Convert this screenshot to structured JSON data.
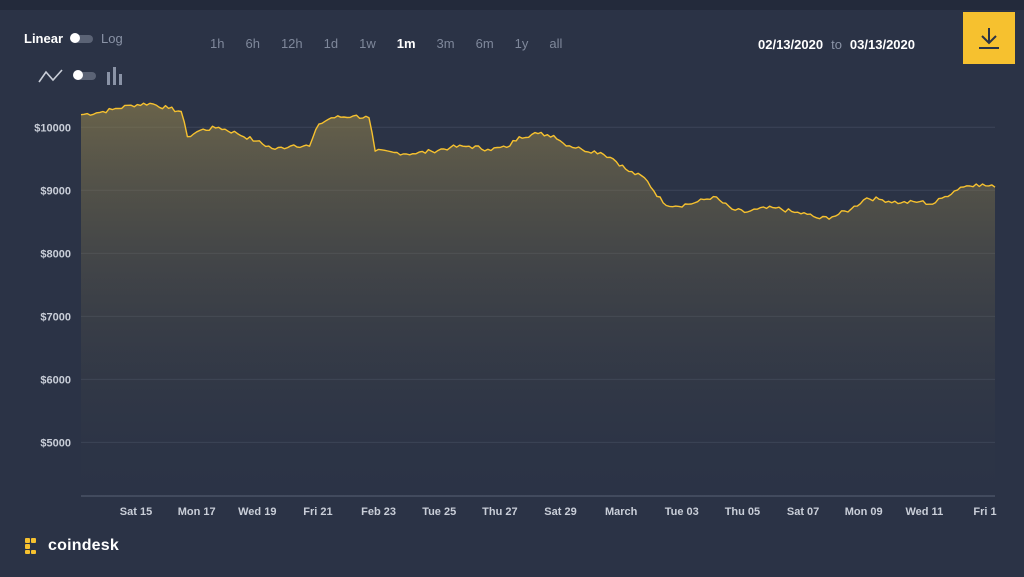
{
  "controls": {
    "scale_linear": "Linear",
    "scale_log": "Log",
    "ranges": [
      "1h",
      "6h",
      "12h",
      "1d",
      "1w",
      "1m",
      "3m",
      "6m",
      "1y",
      "all"
    ],
    "active_range": "1m",
    "date_from": "02/13/2020",
    "date_to_word": "to",
    "date_to": "03/13/2020"
  },
  "icons": {
    "line_chart": "line-chart-icon",
    "bar_chart": "bar-chart-icon",
    "download": "download-icon",
    "logo": "coindesk-logo-icon"
  },
  "colors": {
    "background": "#2b3346",
    "line": "#f6c12f",
    "accent": "#f6c12f"
  },
  "brand": {
    "name": "coindesk"
  },
  "chart_data": {
    "type": "area",
    "title": "",
    "xlabel": "",
    "ylabel": "",
    "x_tick_labels": [
      "Sat 15",
      "Mon 17",
      "Wed 19",
      "Fri 21",
      "Feb 23",
      "Tue 25",
      "Thu 27",
      "Sat 29",
      "March",
      "Tue 03",
      "Thu 05",
      "Sat 07",
      "Mon 09",
      "Wed 11",
      "Fri 1"
    ],
    "y_tick_labels": [
      "$10000",
      "$9000",
      "$8000",
      "$7000",
      "$6000",
      "$5000"
    ],
    "y_ticks": [
      10000,
      9000,
      8000,
      7000,
      6000,
      5000
    ],
    "ylim": [
      4150,
      10750
    ],
    "x_range_days": [
      0,
      29.2
    ],
    "grid": true,
    "series": [
      {
        "values": [
          [
            0,
            10200
          ],
          [
            0.5,
            10230
          ],
          [
            1,
            10280
          ],
          [
            1.6,
            10350
          ],
          [
            2.2,
            10380
          ],
          [
            2.8,
            10300
          ],
          [
            3.2,
            10250
          ],
          [
            3.4,
            9850
          ],
          [
            3.8,
            9950
          ],
          [
            4.4,
            10000
          ],
          [
            5,
            9900
          ],
          [
            5.6,
            9780
          ],
          [
            6.2,
            9650
          ],
          [
            6.8,
            9720
          ],
          [
            7.3,
            9700
          ],
          [
            7.6,
            10050
          ],
          [
            8,
            10150
          ],
          [
            8.7,
            10180
          ],
          [
            9.2,
            10150
          ],
          [
            9.4,
            9620
          ],
          [
            10,
            9600
          ],
          [
            10.6,
            9580
          ],
          [
            11.2,
            9620
          ],
          [
            11.8,
            9680
          ],
          [
            12.4,
            9700
          ],
          [
            13,
            9650
          ],
          [
            13.6,
            9680
          ],
          [
            14,
            9850
          ],
          [
            14.6,
            9900
          ],
          [
            15.1,
            9870
          ],
          [
            15.4,
            9750
          ],
          [
            16,
            9650
          ],
          [
            16.6,
            9600
          ],
          [
            17,
            9500
          ],
          [
            17.5,
            9300
          ],
          [
            18,
            9200
          ],
          [
            18.6,
            8800
          ],
          [
            19,
            8750
          ],
          [
            19.6,
            8800
          ],
          [
            20.2,
            8900
          ],
          [
            20.8,
            8700
          ],
          [
            21.2,
            8650
          ],
          [
            21.6,
            8700
          ],
          [
            22.2,
            8720
          ],
          [
            22.8,
            8650
          ],
          [
            23.2,
            8620
          ],
          [
            23.6,
            8550
          ],
          [
            24,
            8580
          ],
          [
            24.6,
            8700
          ],
          [
            25.1,
            8880
          ],
          [
            25.6,
            8850
          ],
          [
            26.2,
            8800
          ],
          [
            26.8,
            8820
          ],
          [
            27.2,
            8780
          ],
          [
            27.6,
            8900
          ],
          [
            28.1,
            9050
          ],
          [
            28.6,
            9100
          ],
          [
            29.2,
            9050
          ]
        ]
      }
    ],
    "series_note_values_as_pairs": "[day_index, price_usd]"
  }
}
